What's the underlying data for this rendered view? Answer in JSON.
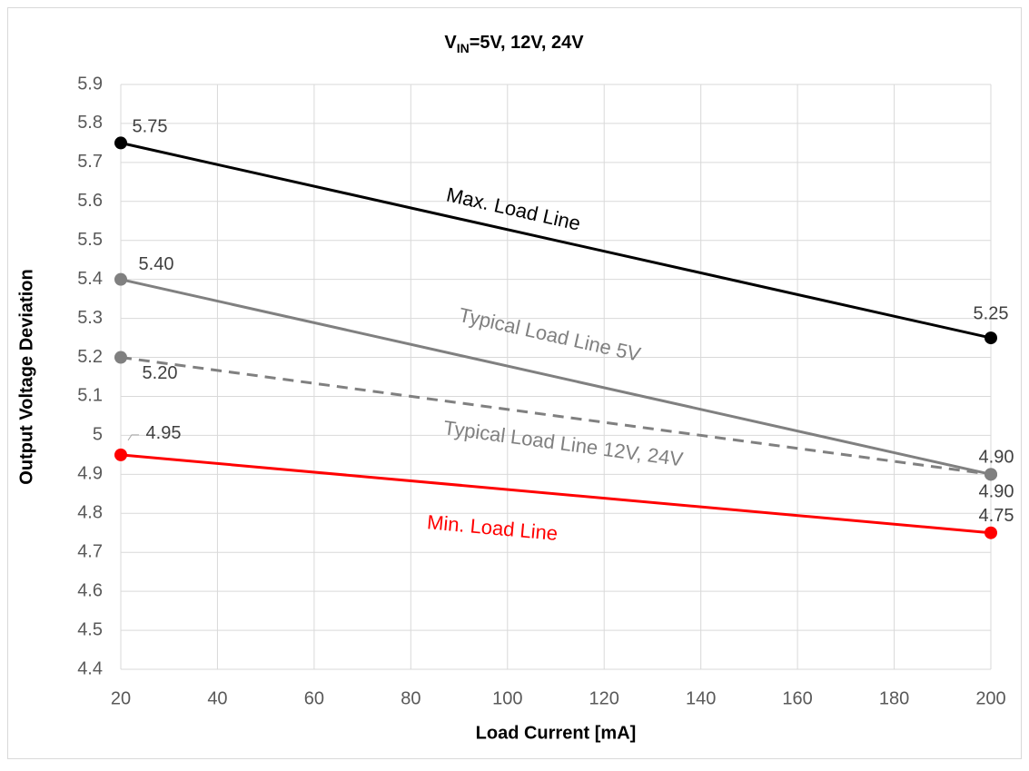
{
  "chart_data": {
    "type": "line",
    "title_parts": [
      "V",
      "IN",
      "=5V, 12V, 24V"
    ],
    "x_label": "Load Current [mA]",
    "y_label": "Output Voltage Deviation",
    "x": [
      20,
      200
    ],
    "series": [
      {
        "name": "Max. Load Line",
        "color": "#000000",
        "dash": false,
        "values": [
          5.75,
          5.25
        ],
        "value_labels": [
          "5.75",
          "5.25"
        ]
      },
      {
        "name": "Typical Load Line 5V",
        "color": "#808080",
        "dash": false,
        "values": [
          5.4,
          4.9
        ],
        "value_labels": [
          "5.40",
          "4.90"
        ]
      },
      {
        "name": "Typical Load Line 12V, 24V",
        "color": "#808080",
        "dash": true,
        "values": [
          5.2,
          4.9
        ],
        "value_labels": [
          "5.20",
          "4.90"
        ]
      },
      {
        "name": "Min. Load Line",
        "color": "#ff0000",
        "dash": false,
        "values": [
          4.95,
          4.75
        ],
        "value_labels": [
          "4.95",
          "4.75"
        ]
      }
    ],
    "xlim": [
      20,
      200
    ],
    "xticks": [
      20,
      40,
      60,
      80,
      100,
      120,
      140,
      160,
      180,
      200
    ],
    "ylim": [
      4.4,
      5.9
    ],
    "yticks": [
      4.4,
      4.5,
      4.6,
      4.7,
      4.8,
      4.9,
      5,
      5.1,
      5.2,
      5.3,
      5.4,
      5.5,
      5.6,
      5.7,
      5.8,
      5.9
    ],
    "grid": true
  }
}
